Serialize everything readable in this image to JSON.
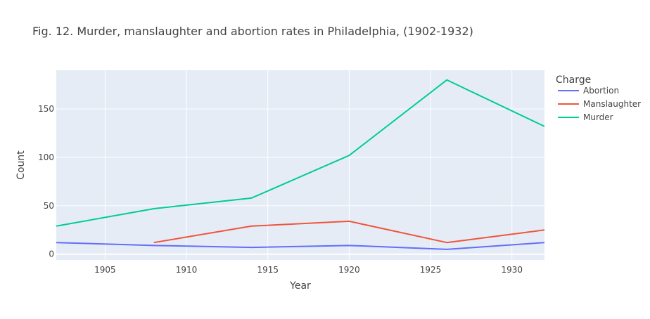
{
  "chart_data": {
    "type": "line",
    "title": "Fig. 12. Murder, manslaughter and abortion rates in Philadelphia, (1902-1932)",
    "xlabel": "Year",
    "ylabel": "Count",
    "xlim": [
      1902,
      1932
    ],
    "ylim": [
      -6,
      190
    ],
    "x_ticks": [
      1905,
      1910,
      1915,
      1920,
      1925,
      1930
    ],
    "y_ticks": [
      0,
      50,
      100,
      150
    ],
    "grid": true,
    "legend_title": "Charge",
    "legend_position": "top-right",
    "background_color": "#e5ecf6",
    "series": [
      {
        "name": "Abortion",
        "color": "#636efa",
        "points": [
          [
            1902,
            12
          ],
          [
            1908,
            9
          ],
          [
            1914,
            7
          ],
          [
            1920,
            9
          ],
          [
            1926,
            5
          ],
          [
            1932,
            12
          ]
        ]
      },
      {
        "name": "Manslaughter",
        "color": "#ef553b",
        "points": [
          [
            1908,
            12
          ],
          [
            1914,
            29
          ],
          [
            1920,
            34
          ],
          [
            1926,
            12
          ],
          [
            1932,
            25
          ]
        ]
      },
      {
        "name": "Murder",
        "color": "#00cc96",
        "points": [
          [
            1902,
            29
          ],
          [
            1908,
            47
          ],
          [
            1914,
            58
          ],
          [
            1920,
            102
          ],
          [
            1926,
            180
          ],
          [
            1932,
            132
          ]
        ]
      }
    ]
  }
}
